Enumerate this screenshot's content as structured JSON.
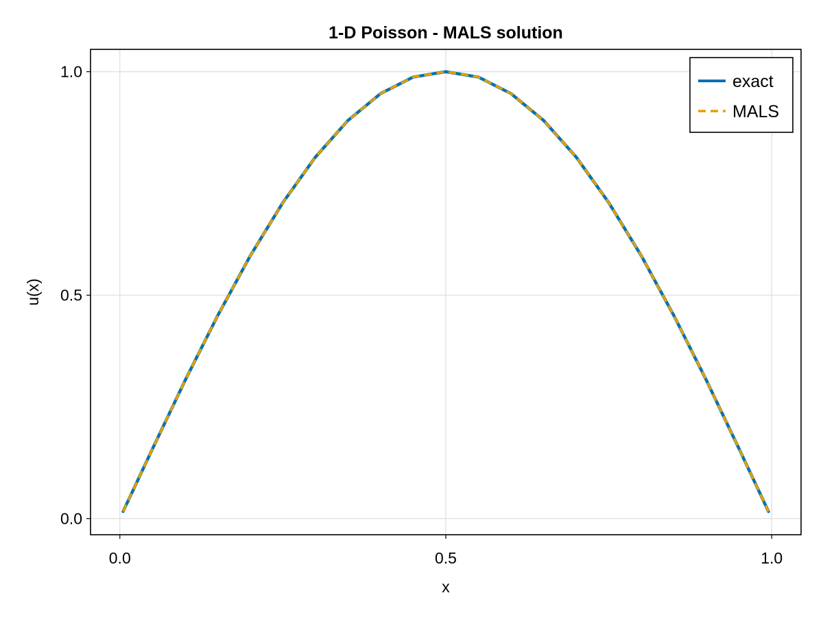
{
  "chart_data": {
    "type": "line",
    "title": "1-D Poisson - MALS solution",
    "xlabel": "x",
    "ylabel": "u(x)",
    "xlim": [
      -0.045,
      1.045
    ],
    "ylim": [
      -0.036,
      1.05
    ],
    "xticks": [
      0.0,
      0.5,
      1.0
    ],
    "xtick_labels": [
      "0.0",
      "0.5",
      "1.0"
    ],
    "yticks": [
      0.0,
      0.5,
      1.0
    ],
    "ytick_labels": [
      "0.0",
      "0.5",
      "1.0"
    ],
    "grid": true,
    "legend_position": "top-right",
    "x": [
      0.005,
      0.05,
      0.1,
      0.15,
      0.2,
      0.25,
      0.3,
      0.35,
      0.4,
      0.45,
      0.5,
      0.55,
      0.6,
      0.65,
      0.7,
      0.75,
      0.8,
      0.85,
      0.9,
      0.95,
      0.995
    ],
    "series": [
      {
        "name": "exact",
        "color": "#0072b2",
        "style": "solid",
        "values": [
          0.016,
          0.156,
          0.309,
          0.454,
          0.588,
          0.707,
          0.809,
          0.891,
          0.951,
          0.988,
          1.0,
          0.988,
          0.951,
          0.891,
          0.809,
          0.707,
          0.588,
          0.454,
          0.309,
          0.156,
          0.016
        ]
      },
      {
        "name": "MALS",
        "color": "#e69f00",
        "style": "dashed",
        "values": [
          0.016,
          0.156,
          0.309,
          0.454,
          0.588,
          0.707,
          0.809,
          0.891,
          0.951,
          0.988,
          1.0,
          0.988,
          0.951,
          0.891,
          0.809,
          0.707,
          0.588,
          0.454,
          0.309,
          0.156,
          0.016
        ]
      }
    ]
  }
}
